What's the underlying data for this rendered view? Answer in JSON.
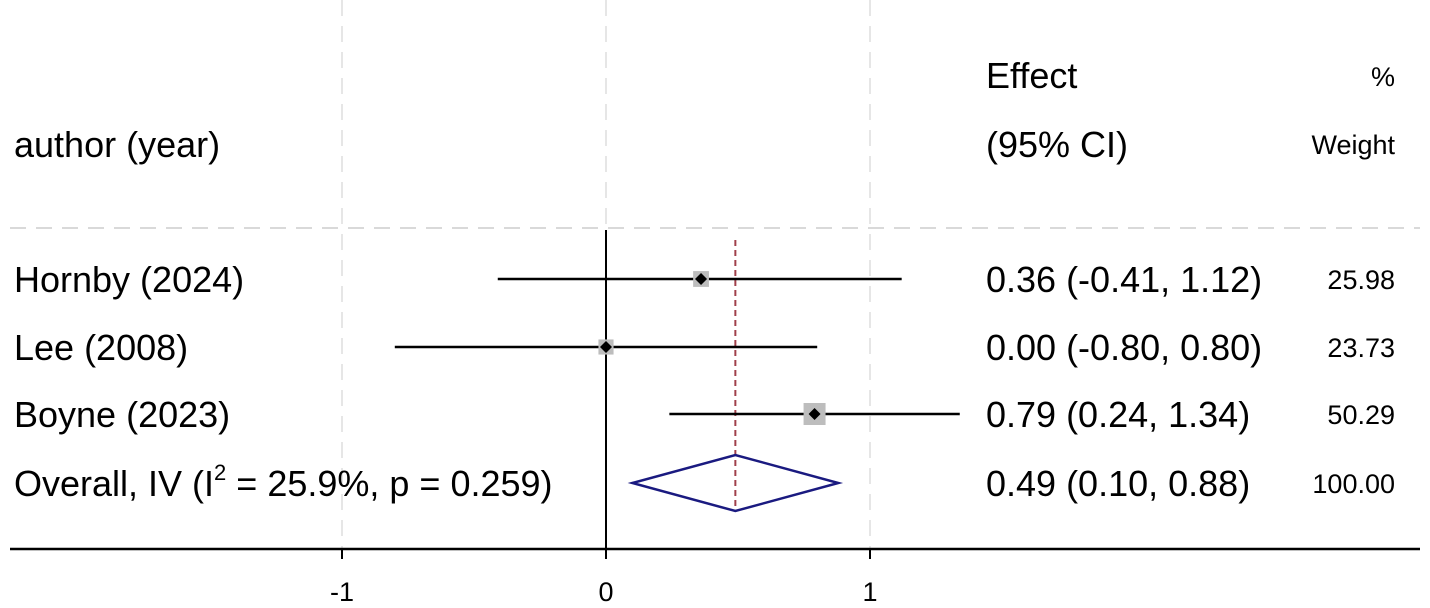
{
  "chart_data": {
    "type": "forest",
    "header": {
      "study_col": "author (year)",
      "effect_col": [
        "Effect",
        "(95% CI)"
      ],
      "weight_col": [
        "%",
        "Weight"
      ]
    },
    "studies": [
      {
        "label": "Hornby (2024)",
        "effect": 0.36,
        "lower": -0.41,
        "upper": 1.12,
        "effect_text": "0.36 (-0.41, 1.12)",
        "weight": 25.98,
        "weight_text": "25.98"
      },
      {
        "label": "Lee (2008)",
        "effect": 0.0,
        "lower": -0.8,
        "upper": 0.8,
        "effect_text": "0.00 (-0.80, 0.80)",
        "weight": 23.73,
        "weight_text": "23.73"
      },
      {
        "label": "Boyne (2023)",
        "effect": 0.79,
        "lower": 0.24,
        "upper": 1.34,
        "effect_text": "0.79 (0.24, 1.34)",
        "weight": 50.29,
        "weight_text": "50.29"
      }
    ],
    "overall": {
      "label_prefix": "Overall, IV (I",
      "label_sup": "2",
      "label_suffix": " = 25.9%, p = 0.259)",
      "effect": 0.49,
      "lower": 0.1,
      "upper": 0.88,
      "effect_text": "0.49 (0.10, 0.88)",
      "weight_text": "100.00"
    },
    "x_ticks": [
      -1,
      0,
      1
    ],
    "x_tick_labels": [
      "-1",
      "0",
      "1"
    ],
    "xlim": [
      -1.5,
      2.1
    ],
    "null_line": 0,
    "grid": "vertical dashed at ticks",
    "colors": {
      "ci_line": "#000000",
      "weight_box": "#bdbdbd",
      "point": "#000000",
      "overall_diamond": "#1a1a80",
      "overall_line": "#a0404a",
      "grid": "#e6e6e6"
    }
  }
}
